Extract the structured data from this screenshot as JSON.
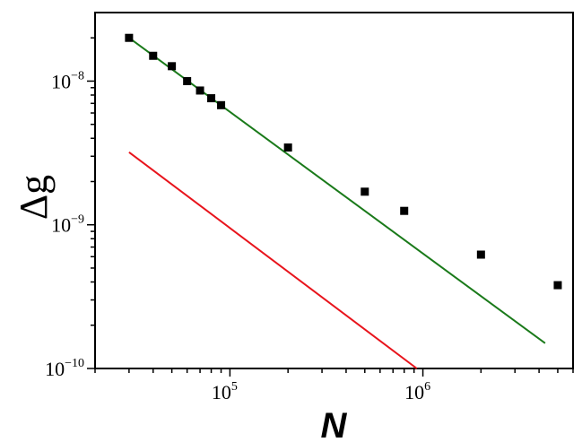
{
  "chart_data": {
    "type": "scatter",
    "xscale": "log",
    "yscale": "log",
    "xlim": [
      20000,
      6000000
    ],
    "ylim": [
      1e-10,
      3e-08
    ],
    "xlabel": "N",
    "ylabel": "Δg",
    "grid": false,
    "x_ticks": [
      {
        "value": 100000,
        "base": "10",
        "exp": "5"
      },
      {
        "value": 1000000,
        "base": "10",
        "exp": "6"
      }
    ],
    "y_ticks": [
      {
        "value": 1e-10,
        "base": "10",
        "exp": "−10"
      },
      {
        "value": 1e-09,
        "base": "10",
        "exp": "−9"
      },
      {
        "value": 1e-08,
        "base": "10",
        "exp": "−8"
      }
    ],
    "series": [
      {
        "type": "scatter",
        "color": "#000000",
        "marker": "square",
        "points": [
          [
            30000,
            2e-08
          ],
          [
            40000,
            1.5e-08
          ],
          [
            50000,
            1.27e-08
          ],
          [
            60000,
            1e-08
          ],
          [
            70000,
            8.6e-09
          ],
          [
            80000,
            7.6e-09
          ],
          [
            90000,
            6.8e-09
          ],
          [
            200000,
            3.45e-09
          ],
          [
            500000,
            1.7e-09
          ],
          [
            800000,
            1.25e-09
          ],
          [
            2000000,
            6.2e-10
          ],
          [
            5000000,
            3.8e-10
          ]
        ]
      },
      {
        "type": "line",
        "color": "#1a7a1a",
        "points": [
          [
            30000,
            2e-08
          ],
          [
            4300000,
            1.5e-10
          ]
        ]
      },
      {
        "type": "line",
        "color": "#e8141c",
        "points": [
          [
            30000,
            3.2e-09
          ],
          [
            930000,
            1e-10
          ]
        ]
      }
    ]
  }
}
